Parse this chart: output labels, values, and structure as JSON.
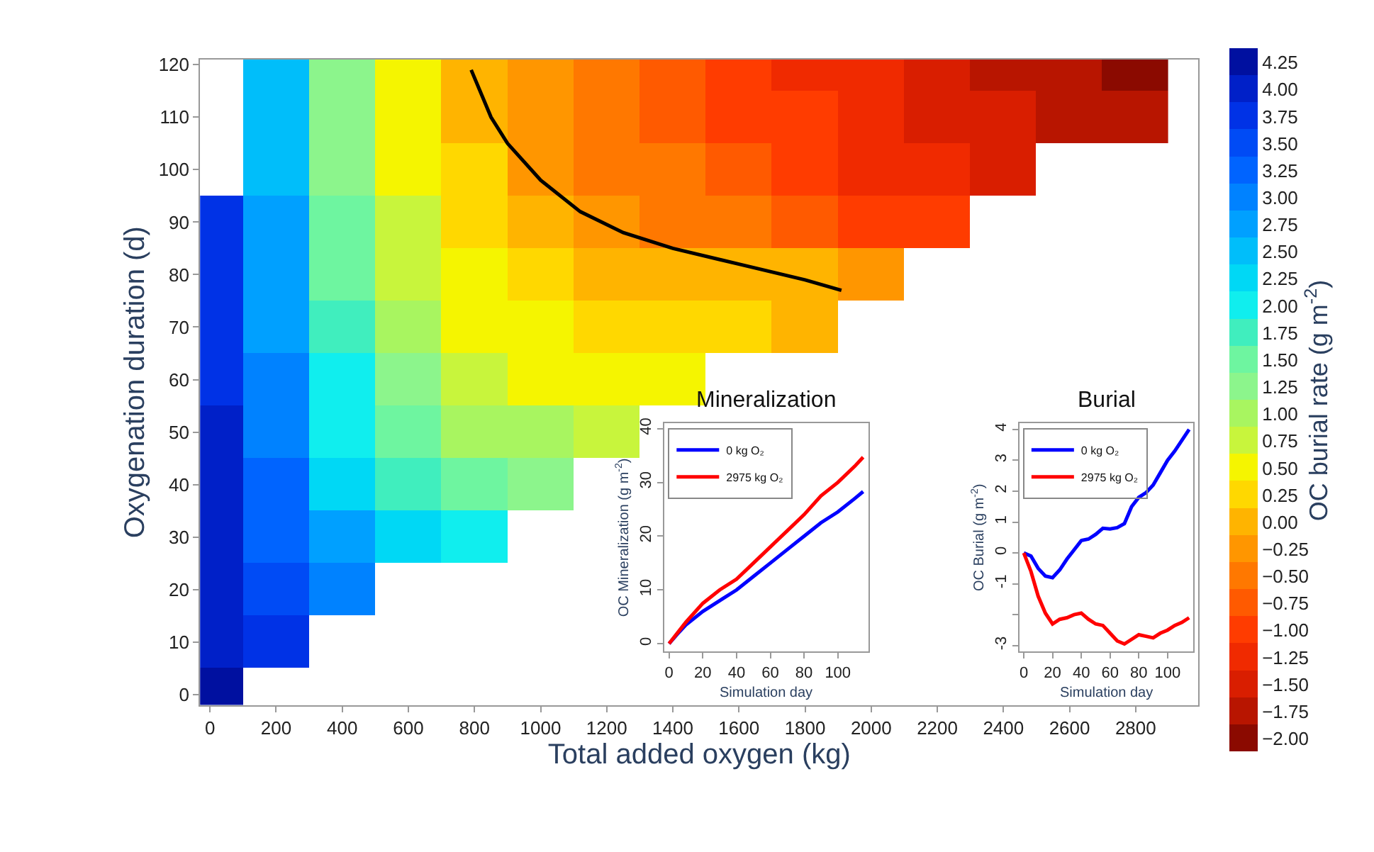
{
  "chart_data": [
    {
      "type": "heatmap",
      "xlabel": "Total added oxygen (kg)",
      "ylabel": "Oxygenation duration (d)",
      "clabel": "OC burial rate (g m$^{-2}$)",
      "x": [
        0,
        200,
        400,
        600,
        800,
        1000,
        1200,
        1400,
        1600,
        1800,
        2000,
        2200,
        2400,
        2600,
        2800
      ],
      "y": [
        120,
        110,
        100,
        90,
        80,
        70,
        60,
        50,
        40,
        30,
        20,
        10,
        0
      ],
      "cells": [
        [
          null,
          2.5,
          1.25,
          0.4,
          0.0,
          -0.3,
          -0.55,
          -0.8,
          -1.0,
          -1.2,
          -1.35,
          -1.5,
          -1.65,
          -1.8,
          -1.95
        ],
        [
          null,
          2.5,
          1.3,
          0.45,
          0.05,
          -0.25,
          -0.5,
          -0.7,
          -0.95,
          -1.1,
          -1.3,
          -1.45,
          -1.55,
          -1.7,
          -1.85
        ],
        [
          null,
          2.6,
          1.35,
          0.55,
          0.15,
          -0.15,
          -0.4,
          -0.6,
          -0.8,
          -1.0,
          -1.15,
          -1.3,
          -1.45,
          null,
          null
        ],
        [
          3.75,
          2.7,
          1.45,
          0.65,
          0.3,
          0.05,
          -0.2,
          -0.4,
          -0.6,
          -0.75,
          -0.9,
          -1.05,
          null,
          null,
          null
        ],
        [
          3.75,
          2.75,
          1.55,
          0.8,
          0.45,
          0.25,
          0.1,
          0.05,
          0.0,
          -0.05,
          -0.2,
          null,
          null,
          null,
          null
        ],
        [
          3.8,
          2.85,
          1.7,
          0.95,
          0.6,
          0.4,
          0.3,
          0.2,
          0.15,
          0.1,
          null,
          null,
          null,
          null,
          null
        ],
        [
          3.85,
          2.95,
          1.9,
          1.15,
          0.8,
          0.6,
          0.5,
          0.45,
          null,
          null,
          null,
          null,
          null,
          null,
          null
        ],
        [
          3.9,
          3.05,
          2.1,
          1.4,
          1.05,
          0.9,
          0.8,
          null,
          null,
          null,
          null,
          null,
          null,
          null,
          null
        ],
        [
          3.95,
          3.15,
          2.35,
          1.75,
          1.4,
          1.25,
          null,
          null,
          null,
          null,
          null,
          null,
          null,
          null,
          null
        ],
        [
          4.0,
          3.3,
          2.65,
          2.2,
          2.0,
          null,
          null,
          null,
          null,
          null,
          null,
          null,
          null,
          null,
          null
        ],
        [
          4.05,
          3.5,
          3.1,
          null,
          null,
          null,
          null,
          null,
          null,
          null,
          null,
          null,
          null,
          null,
          null
        ],
        [
          4.1,
          3.8,
          null,
          null,
          null,
          null,
          null,
          null,
          null,
          null,
          null,
          null,
          null,
          null,
          null
        ],
        [
          4.2,
          null,
          null,
          null,
          null,
          null,
          null,
          null,
          null,
          null,
          null,
          null,
          null,
          null,
          null
        ]
      ],
      "clim": [
        -2.125,
        4.375
      ],
      "cticks": [
        {
          "value": -2,
          "label": "−2.00"
        },
        {
          "value": -1.75,
          "label": "−1.75"
        },
        {
          "value": -1.5,
          "label": "−1.50"
        },
        {
          "value": -1.25,
          "label": "−1.25"
        },
        {
          "value": -1,
          "label": "−1.00"
        },
        {
          "value": -0.75,
          "label": "−0.75"
        },
        {
          "value": -0.5,
          "label": "−0.50"
        },
        {
          "value": -0.25,
          "label": "−0.25"
        },
        {
          "value": 0,
          "label": "0.00"
        },
        {
          "value": 0.25,
          "label": "0.25"
        },
        {
          "value": 0.5,
          "label": "0.50"
        },
        {
          "value": 0.75,
          "label": "0.75"
        },
        {
          "value": 1,
          "label": "1.00"
        },
        {
          "value": 1.25,
          "label": "1.25"
        },
        {
          "value": 1.5,
          "label": "1.50"
        },
        {
          "value": 1.75,
          "label": "1.75"
        },
        {
          "value": 2,
          "label": "2.00"
        },
        {
          "value": 2.25,
          "label": "2.25"
        },
        {
          "value": 2.5,
          "label": "2.50"
        },
        {
          "value": 2.75,
          "label": "2.75"
        },
        {
          "value": 3,
          "label": "3.00"
        },
        {
          "value": 3.25,
          "label": "3.25"
        },
        {
          "value": 3.5,
          "label": "3.50"
        },
        {
          "value": 3.75,
          "label": "3.75"
        },
        {
          "value": 4,
          "label": "4.00"
        },
        {
          "value": 4.25,
          "label": "4.25"
        }
      ],
      "colors": [
        "#8b0a00",
        "#b81500",
        "#d91e00",
        "#f02a00",
        "#ff3c00",
        "#ff5a00",
        "#ff7800",
        "#ff9600",
        "#ffb400",
        "#ffd800",
        "#f5f500",
        "#c8f53c",
        "#a8f560",
        "#8cf58c",
        "#6ef5a0",
        "#40eebe",
        "#10eeee",
        "#00d8f5",
        "#00befa",
        "#00a0ff",
        "#0082ff",
        "#0064ff",
        "#004bf5",
        "#0032e6",
        "#0020c8",
        "#0010a0"
      ],
      "series": [
        {
          "type": "line",
          "color": "#000000",
          "x": [
            790,
            830,
            850,
            900,
            1000,
            1120,
            1250,
            1400,
            1600,
            1800,
            1910
          ],
          "values": [
            119,
            113,
            110,
            105,
            98,
            92,
            88,
            85,
            82,
            79,
            77
          ]
        }
      ],
      "xlim": [
        -30,
        2990
      ],
      "xticks": [
        0,
        200,
        400,
        600,
        800,
        1000,
        1200,
        1400,
        1600,
        1800,
        2000,
        2200,
        2400,
        2600,
        2800
      ],
      "ylim": [
        -2,
        121
      ],
      "yticks": [
        0,
        10,
        20,
        30,
        40,
        50,
        60,
        70,
        80,
        90,
        100,
        110,
        120
      ]
    },
    {
      "type": "line",
      "title": "Mineralization",
      "xlabel": "Simulation day",
      "ylabel": "OC Mineralization (g m$^{-2}$)",
      "legend": "top left",
      "series": [
        {
          "name": "0 kg O₂",
          "color": "#0000ff",
          "x": [
            0,
            5,
            10,
            20,
            30,
            40,
            50,
            60,
            70,
            80,
            90,
            100,
            110,
            115
          ],
          "values": [
            0,
            1.8,
            3.5,
            6,
            8,
            10,
            12.5,
            15,
            17.5,
            20,
            22.5,
            24.5,
            27,
            28.3
          ]
        },
        {
          "name": "2975 kg O₂",
          "color": "#ff0000",
          "x": [
            0,
            5,
            10,
            20,
            30,
            40,
            50,
            60,
            70,
            80,
            90,
            100,
            110,
            115
          ],
          "values": [
            0,
            2,
            4,
            7.5,
            10,
            12,
            15,
            18,
            21,
            24,
            27.5,
            30,
            33,
            34.7
          ]
        }
      ],
      "xlim": [
        -3,
        118
      ],
      "xticks": [
        0,
        20,
        40,
        60,
        80,
        100
      ],
      "ylim": [
        -1.5,
        41
      ],
      "yticks": [
        0,
        10,
        20,
        30,
        40
      ]
    },
    {
      "type": "line",
      "title": "Burial",
      "xlabel": "Simulation day",
      "ylabel": "OC Burial (g m$^{-2}$)",
      "legend": "top left",
      "series": [
        {
          "name": "0 kg O₂",
          "color": "#0000ff",
          "x": [
            0,
            5,
            10,
            15,
            20,
            25,
            30,
            35,
            40,
            45,
            50,
            55,
            60,
            65,
            70,
            75,
            80,
            85,
            90,
            95,
            100,
            105,
            110,
            115
          ],
          "values": [
            0,
            -0.1,
            -0.5,
            -0.75,
            -0.8,
            -0.55,
            -0.2,
            0.1,
            0.4,
            0.45,
            0.6,
            0.8,
            0.78,
            0.82,
            0.95,
            1.5,
            1.8,
            1.95,
            2.2,
            2.6,
            3.0,
            3.3,
            3.65,
            4.0
          ]
        },
        {
          "name": "2975 kg O₂",
          "color": "#ff0000",
          "x": [
            0,
            5,
            10,
            15,
            20,
            25,
            30,
            35,
            40,
            45,
            50,
            55,
            60,
            65,
            70,
            75,
            80,
            85,
            90,
            95,
            100,
            105,
            110,
            115
          ],
          "values": [
            0,
            -0.6,
            -1.4,
            -1.95,
            -2.3,
            -2.15,
            -2.1,
            -2.0,
            -1.95,
            -2.15,
            -2.3,
            -2.35,
            -2.6,
            -2.85,
            -2.95,
            -2.8,
            -2.65,
            -2.7,
            -2.75,
            -2.6,
            -2.5,
            -2.35,
            -2.25,
            -2.1
          ]
        }
      ],
      "xlim": [
        -3,
        118
      ],
      "xticks": [
        0,
        20,
        40,
        60,
        80,
        100
      ],
      "ylim": [
        -3.2,
        4.2
      ],
      "yticks": [
        -3,
        {
          "value": -2,
          "label": null
        },
        -1,
        0,
        1,
        2,
        3,
        4
      ]
    }
  ]
}
